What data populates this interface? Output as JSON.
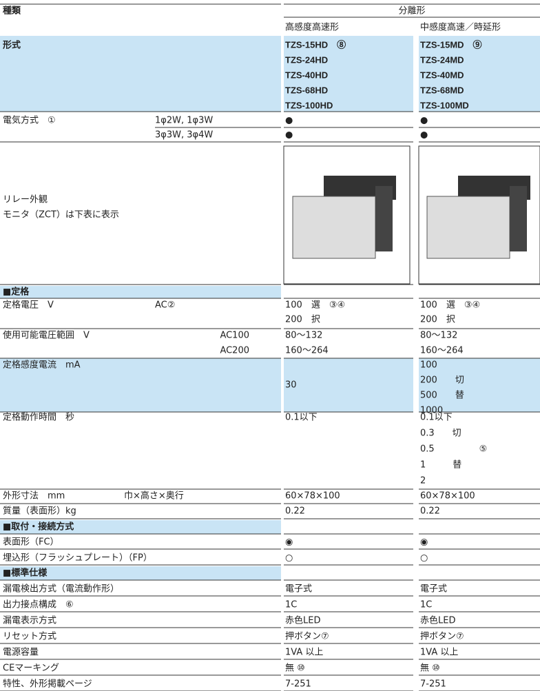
{
  "header": {
    "kind": "種類",
    "group": "分離形",
    "types": [
      "高感度高速形",
      "中感度高速／時延形"
    ]
  },
  "rows": [
    {
      "label": "形式",
      "a": [
        "TZS-15HD　⑧",
        "TZS-24HD",
        "TZS-40HD",
        "TZS-68HD",
        "TZS-100HD"
      ],
      "b": [
        "TZS-15MD　⑨",
        "TZS-24MD",
        "TZS-40MD",
        "TZS-68MD",
        "TZS-100MD"
      ]
    },
    {
      "label": "電気方式　①",
      "sub": [
        "1φ2W, 1φ3W",
        "3φ3W, 3φ4W"
      ],
      "a": [
        "●",
        "●"
      ],
      "b": [
        "●",
        "●"
      ]
    },
    {
      "label": [
        "リレー外観",
        "モニタ（ZCT）は下表に表示"
      ]
    },
    {
      "section": "■定格"
    },
    {
      "label": "定格電圧　V",
      "sub": [
        "AC②"
      ],
      "a": [
        "100　選　③④",
        "200　択"
      ],
      "b": [
        "100　選　③④",
        "200　択"
      ]
    },
    {
      "label": "使用可能電圧範囲　V",
      "sub": [
        "AC100",
        "AC200"
      ],
      "a": [
        "80～132",
        "160～264"
      ],
      "b": [
        "80～132",
        "160～264"
      ]
    },
    {
      "label": "定格感度電流　mA",
      "a": [
        "30"
      ],
      "b": [
        "100",
        "200　　切",
        "500　　替",
        "1000"
      ]
    },
    {
      "label": "定格動作時間　秒",
      "a": [
        "0.1以下"
      ],
      "b": [
        "0.1以下",
        "0.3　　切",
        "0.5　　　　　⑤",
        "1　　　替",
        "2"
      ]
    },
    {
      "label": "外形寸法　mm",
      "sub": [
        "巾×高さ×奥行"
      ],
      "a": [
        "60×78×100"
      ],
      "b": [
        "60×78×100"
      ]
    },
    {
      "label": "質量（表面形）kg",
      "a": [
        "0.22"
      ],
      "b": [
        "0.22"
      ]
    },
    {
      "section": "■取付・接続方式"
    },
    {
      "label": "表面形（FC）",
      "a": [
        "◉"
      ],
      "b": [
        "◉"
      ]
    },
    {
      "label": "埋込形（フラッシュプレート）（FP）",
      "a": [
        "○"
      ],
      "b": [
        "○"
      ]
    },
    {
      "section": "■標準仕様"
    },
    {
      "label": "漏電検出方式（電流動作形）",
      "a": [
        "電子式"
      ],
      "b": [
        "電子式"
      ]
    },
    {
      "label": "出力接点構成　⑥",
      "a": [
        "1C"
      ],
      "b": [
        "1C"
      ]
    },
    {
      "label": "漏電表示方式",
      "a": [
        "赤色LED"
      ],
      "b": [
        "赤色LED"
      ]
    },
    {
      "label": "リセット方式",
      "a": [
        "押ボタン⑦"
      ],
      "b": [
        "押ボタン⑦"
      ]
    },
    {
      "label": "電源容量",
      "a": [
        "1VA 以上"
      ],
      "b": [
        "1VA 以上"
      ]
    },
    {
      "label": "CEマーキング",
      "a": [
        "無 ⑩"
      ],
      "b": [
        "無 ⑩"
      ]
    },
    {
      "label": "特性、外形掲載ページ",
      "a": [
        "7-251"
      ],
      "b": [
        "7-251"
      ]
    }
  ]
}
